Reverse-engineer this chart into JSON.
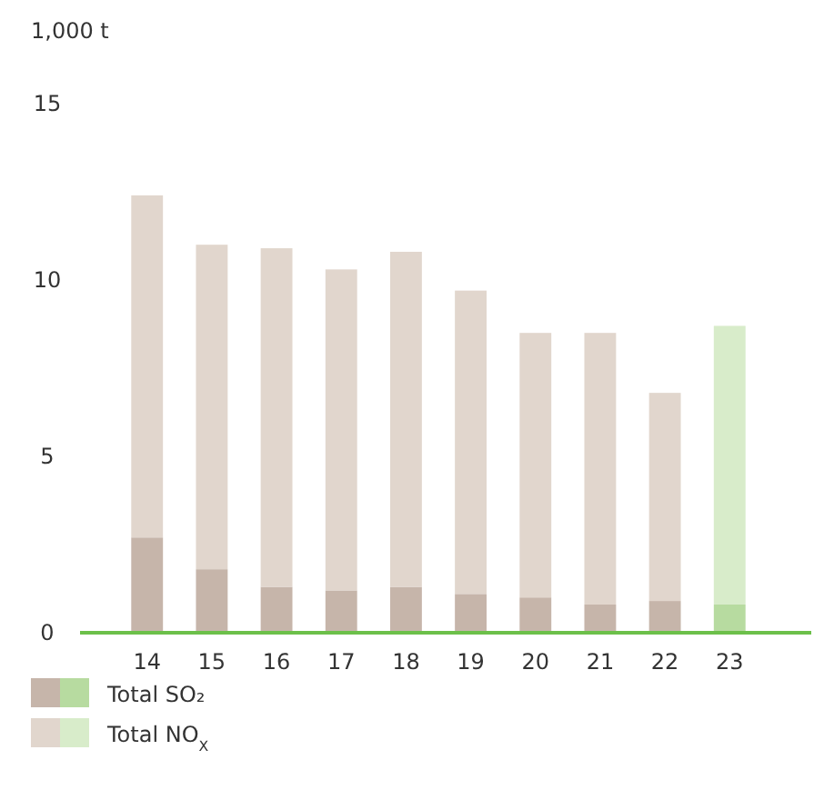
{
  "chart_data": {
    "type": "bar",
    "stacked": true,
    "ylabel": "1,000 t",
    "categories": [
      "14",
      "15",
      "16",
      "17",
      "18",
      "19",
      "20",
      "21",
      "22",
      "23"
    ],
    "series": [
      {
        "name": "Total SO₂",
        "color": "#c6b5aa",
        "colors": [
          "#c6b5aa",
          "#c6b5aa",
          "#c6b5aa",
          "#c6b5aa",
          "#c6b5aa",
          "#c6b5aa",
          "#c6b5aa",
          "#c6b5aa",
          "#c6b5aa",
          "#b7dba0"
        ],
        "values": [
          2.7,
          1.8,
          1.3,
          1.2,
          1.3,
          1.1,
          1.0,
          0.8,
          0.9,
          0.8
        ]
      },
      {
        "name": "Total NO$_{X}$",
        "color": "#e1d6cd",
        "colors": [
          "#e1d6cd",
          "#e1d6cd",
          "#e1d6cd",
          "#e1d6cd",
          "#e1d6cd",
          "#e1d6cd",
          "#e1d6cd",
          "#e1d6cd",
          "#e1d6cd",
          "#d8ecca"
        ],
        "values": [
          9.7,
          9.2,
          9.6,
          9.1,
          9.5,
          8.6,
          7.5,
          7.7,
          5.9,
          7.9
        ]
      }
    ],
    "ylim": [
      0,
      15
    ],
    "yticks": [
      0,
      5,
      10,
      15
    ],
    "grid": false,
    "legend": "bottom left"
  }
}
